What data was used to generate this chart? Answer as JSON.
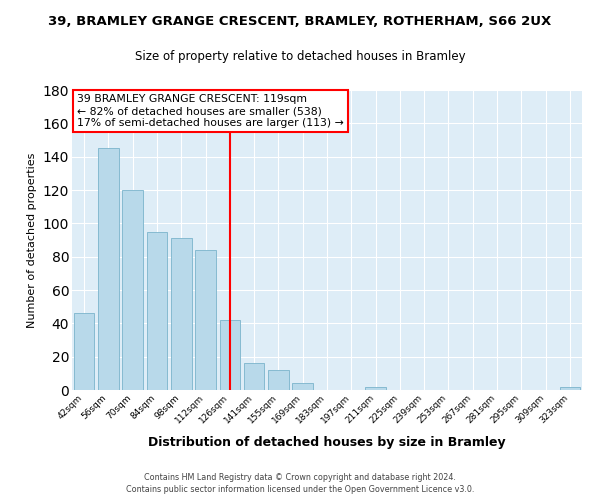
{
  "title_line1": "39, BRAMLEY GRANGE CRESCENT, BRAMLEY, ROTHERHAM, S66 2UX",
  "title_line2": "Size of property relative to detached houses in Bramley",
  "xlabel": "Distribution of detached houses by size in Bramley",
  "ylabel": "Number of detached properties",
  "bar_labels": [
    "42sqm",
    "56sqm",
    "70sqm",
    "84sqm",
    "98sqm",
    "112sqm",
    "126sqm",
    "141sqm",
    "155sqm",
    "169sqm",
    "183sqm",
    "197sqm",
    "211sqm",
    "225sqm",
    "239sqm",
    "253sqm",
    "267sqm",
    "281sqm",
    "295sqm",
    "309sqm",
    "323sqm"
  ],
  "bar_heights": [
    46,
    145,
    120,
    95,
    91,
    84,
    42,
    16,
    12,
    4,
    0,
    0,
    2,
    0,
    0,
    0,
    0,
    0,
    0,
    0,
    2
  ],
  "bar_color": "#b8d9ea",
  "bar_edge_color": "#7ab4cc",
  "highlight_x_label": "126sqm",
  "highlight_line_color": "red",
  "annotation_text": "39 BRAMLEY GRANGE CRESCENT: 119sqm\n← 82% of detached houses are smaller (538)\n17% of semi-detached houses are larger (113) →",
  "annotation_box_color": "white",
  "annotation_box_edgecolor": "red",
  "ylim": [
    0,
    180
  ],
  "yticks": [
    0,
    20,
    40,
    60,
    80,
    100,
    120,
    140,
    160,
    180
  ],
  "footer_line1": "Contains HM Land Registry data © Crown copyright and database right 2024.",
  "footer_line2": "Contains public sector information licensed under the Open Government Licence v3.0.",
  "bg_color": "#deedf7",
  "fig_bg_color": "white",
  "grid_color": "white"
}
